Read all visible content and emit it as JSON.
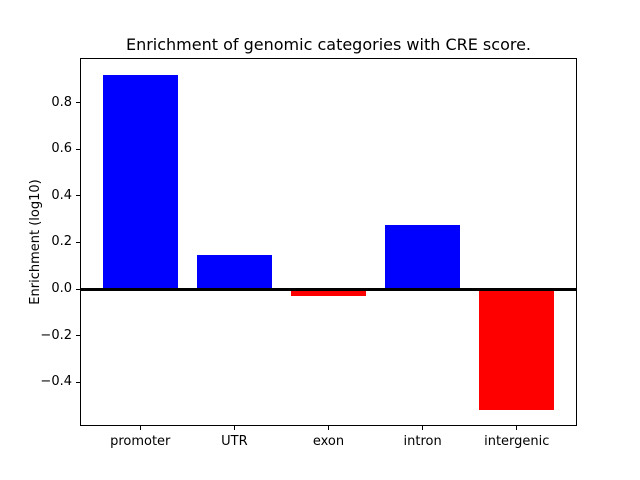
{
  "chart_data": {
    "type": "bar",
    "title": "Enrichment of genomic categories with CRE score.",
    "xlabel": "",
    "ylabel": "Enrichment (log10)",
    "categories": [
      "promoter",
      "UTR",
      "exon",
      "intron",
      "intergenic"
    ],
    "values": [
      0.92,
      0.145,
      -0.03,
      0.275,
      -0.52
    ],
    "bar_colors": [
      "#0000ff",
      "#0000ff",
      "#ff0000",
      "#0000ff",
      "#ff0000"
    ],
    "positive_color": "#0000ff",
    "negative_color": "#ff0000",
    "y_ticks": [
      0.8,
      0.6,
      0.4,
      0.2,
      0.0,
      -0.2,
      -0.4
    ],
    "y_tick_labels": [
      "0.8",
      "0.6",
      "0.4",
      "0.2",
      "0.0",
      "−0.2",
      "−0.4"
    ],
    "ylim": [
      -0.588,
      0.992
    ],
    "bar_width_fraction": 0.8,
    "zero_line": true,
    "grid": false,
    "legend_position": "none",
    "background_color": "#ffffff",
    "axis_color": "#000000"
  }
}
